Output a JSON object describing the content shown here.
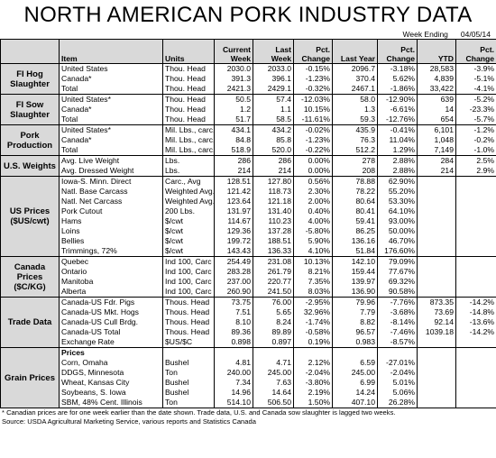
{
  "title": "NORTH AMERICAN PORK INDUSTRY DATA",
  "week_label": "Week Ending",
  "week_date": "04/05/14",
  "header": {
    "columns": [
      "Item",
      "Units",
      "Current Week",
      "Last Week",
      "Pct. Change",
      "Last Year",
      "Pct. Change",
      "YTD",
      "Pct. Change"
    ]
  },
  "sections": [
    {
      "label": "FI Hog Slaughter",
      "rows": [
        [
          "United States",
          "Thou. Head",
          "2030.0",
          "2033.0",
          "-0.15%",
          "2096.7",
          "-3.18%",
          "28,583",
          "-3.9%"
        ],
        [
          "Canada*",
          "Thou. Head",
          "391.3",
          "396.1",
          "-1.23%",
          "370.4",
          "5.62%",
          "4,839",
          "-5.1%"
        ],
        [
          "Total",
          "Thou. Head",
          "2421.3",
          "2429.1",
          "-0.32%",
          "2467.1",
          "-1.86%",
          "33,422",
          "-4.1%"
        ]
      ]
    },
    {
      "label": "FI Sow Slaughter",
      "rows": [
        [
          "United States*",
          "Thou. Head",
          "50.5",
          "57.4",
          "-12.03%",
          "58.0",
          "-12.90%",
          "639",
          "-5.2%"
        ],
        [
          "Canada*",
          "Thou. Head",
          "1.2",
          "1.1",
          "10.15%",
          "1.3",
          "-6.61%",
          "14",
          "-23.3%"
        ],
        [
          "Total",
          "Thou. Head",
          "51.7",
          "58.5",
          "-11.61%",
          "59.3",
          "-12.76%",
          "654",
          "-5.7%"
        ]
      ]
    },
    {
      "label": "Pork Production",
      "rows": [
        [
          "United States*",
          "Mil. Lbs., carc.",
          "434.1",
          "434.2",
          "-0.02%",
          "435.9",
          "-0.41%",
          "6,101",
          "-1.2%"
        ],
        [
          "Canada*",
          "Mil. Lbs., carc.",
          "84.8",
          "85.8",
          "-1.23%",
          "76.3",
          "11.04%",
          "1,048",
          "-0.2%"
        ],
        [
          "Total",
          "Mil. Lbs., carc.",
          "518.9",
          "520.0",
          "-0.22%",
          "512.2",
          "1.29%",
          "7,149",
          "-1.0%"
        ]
      ]
    },
    {
      "label": "U.S. Weights",
      "rows": [
        [
          "Avg. Live Weight",
          "Lbs.",
          "286",
          "286",
          "0.00%",
          "278",
          "2.88%",
          "284",
          "2.5%"
        ],
        [
          "Avg. Dressed Weight",
          "Lbs.",
          "214",
          "214",
          "0.00%",
          "208",
          "2.88%",
          "214",
          "2.9%"
        ]
      ]
    },
    {
      "label": "US Prices ($US/cwt)",
      "rows": [
        [
          "Iowa-S. Minn. Direct",
          "Carc., Avg",
          "128.51",
          "127.80",
          "0.56%",
          "78.88",
          "62.90%"
        ],
        [
          "Natl. Base Carcass",
          "Weighted Avg.",
          "121.42",
          "118.73",
          "2.30%",
          "78.22",
          "55.20%"
        ],
        [
          "Natl. Net Carcass",
          "Weighted Avg.",
          "123.64",
          "121.18",
          "2.00%",
          "80.64",
          "53.30%"
        ],
        [
          "Pork Cutout",
          "200 Lbs.",
          "131.97",
          "131.40",
          "0.40%",
          "80.41",
          "64.10%"
        ],
        [
          "Hams",
          "$/cwt",
          "114.67",
          "110.23",
          "4.00%",
          "59.41",
          "93.00%"
        ],
        [
          "Loins",
          "$/cwt",
          "129.36",
          "137.28",
          "-5.80%",
          "86.25",
          "50.00%"
        ],
        [
          "Bellies",
          "$/cwt",
          "199.72",
          "188.51",
          "5.90%",
          "136.16",
          "46.70%"
        ],
        [
          "Trimmings, 72%",
          "$/cwt",
          "143.43",
          "136.33",
          "4.10%",
          "51.84",
          "176.60%"
        ]
      ]
    },
    {
      "label": "Canada Prices ($C/KG)",
      "rows": [
        [
          "Quebec",
          "Ind 100, Carc",
          "254.49",
          "231.08",
          "10.13%",
          "142.10",
          "79.09%"
        ],
        [
          "Ontario",
          "Ind 100, Carc",
          "283.28",
          "261.79",
          "8.21%",
          "159.44",
          "77.67%"
        ],
        [
          "Manitoba",
          "Ind 100, Carc",
          "237.00",
          "220.77",
          "7.35%",
          "139.97",
          "69.32%"
        ],
        [
          "Alberta",
          "Ind 100, Carc",
          "260.90",
          "241.50",
          "8.03%",
          "136.90",
          "90.58%"
        ]
      ]
    },
    {
      "label": "Trade Data",
      "rows": [
        [
          "Canada-US Fdr. Pigs",
          "Thous. Head",
          "73.75",
          "76.00",
          "-2.95%",
          "79.96",
          "-7.76%",
          "873.35",
          "-14.2%"
        ],
        [
          "Canada-US Mkt. Hogs",
          "Thous. Head",
          "7.51",
          "5.65",
          "32.96%",
          "7.79",
          "-3.68%",
          "73.69",
          "-14.8%"
        ],
        [
          "Canada-US Cull Brdg.",
          "Thous. Head",
          "8.10",
          "8.24",
          "-1.74%",
          "8.82",
          "-8.14%",
          "92.14",
          "-13.6%"
        ],
        [
          "Canada-US Total",
          "Thous. Head",
          "89.36",
          "89.89",
          "-0.58%",
          "96.57",
          "-7.46%",
          "1039.18",
          "-14.2%"
        ],
        [
          "Exchange Rate",
          "$US/$C",
          "0.898",
          "0.897",
          "0.19%",
          "0.983",
          "-8.57%"
        ]
      ]
    },
    {
      "label": "Grain Prices",
      "rows": [
        [
          "Prices"
        ],
        [
          "Corn, Omaha",
          "Bushel",
          "4.81",
          "4.71",
          "2.12%",
          "6.59",
          "-27.01%"
        ],
        [
          "DDGS, Minnesota",
          "Ton",
          "240.00",
          "245.00",
          "-2.04%",
          "245.00",
          "-2.04%"
        ],
        [
          "Wheat, Kansas City",
          "Bushel",
          "7.34",
          "7.63",
          "-3.80%",
          "6.99",
          "5.01%"
        ],
        [
          "Soybeans, S. Iowa",
          "Bushel",
          "14.96",
          "14.64",
          "2.19%",
          "14.24",
          "5.06%"
        ],
        [
          "SBM, 48% Cent. Illinois",
          "Ton",
          "514.10",
          "506.50",
          "1.50%",
          "407.10",
          "26.28%"
        ]
      ]
    }
  ],
  "footnotes": [
    "* Canadian prices are for one week earlier than the date shown.  Trade data, U.S. and Canada sow slaughter is lagged two weeks.",
    "Source:  USDA Agricultural Marketing Service, various reports and Statistics Canada"
  ]
}
